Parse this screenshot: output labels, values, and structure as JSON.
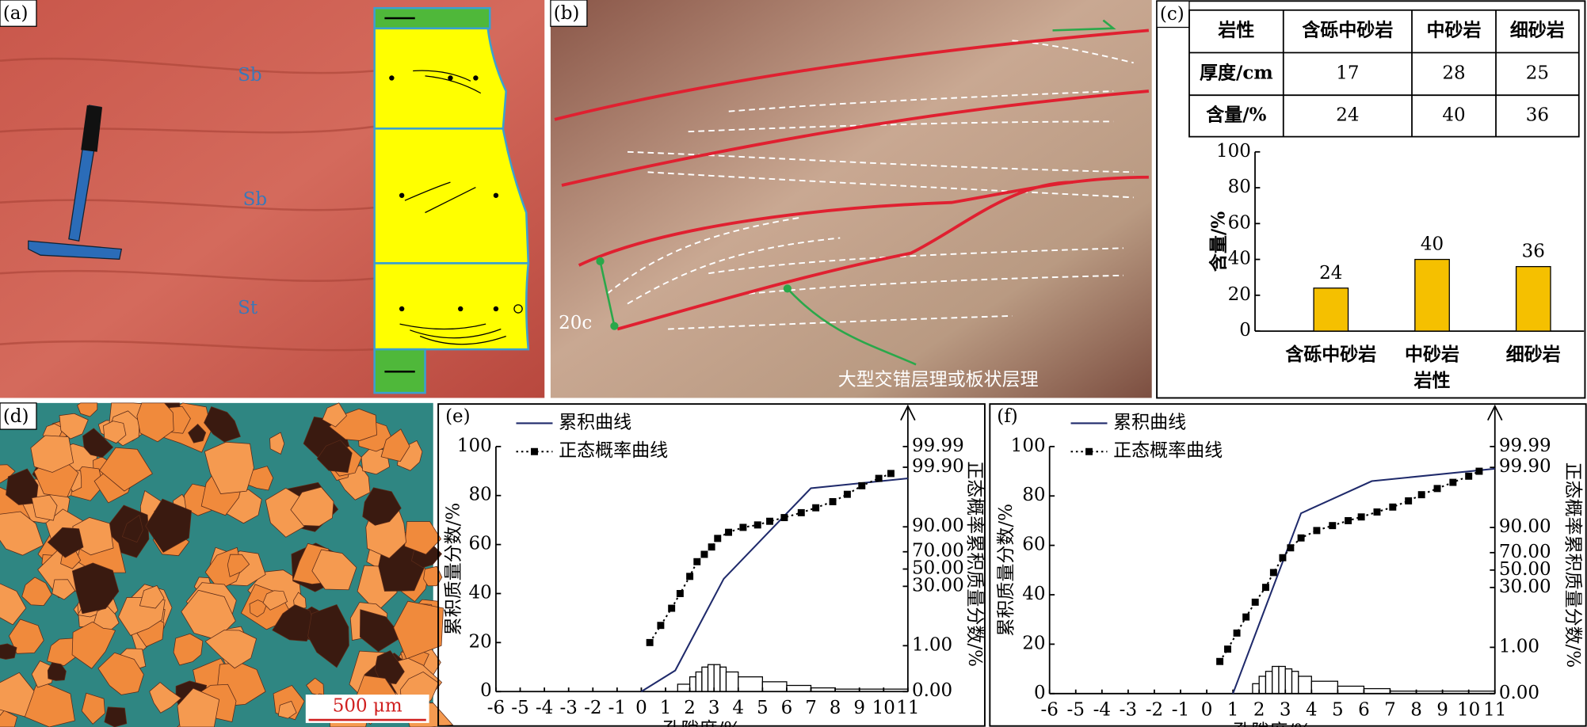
{
  "panels": {
    "a": {
      "label": "(a)",
      "facies": [
        "Sb",
        "Sb",
        "St"
      ]
    },
    "b": {
      "label": "(b)",
      "scale": "20c",
      "annotation": "大型交错层理或板状层理"
    },
    "c": {
      "label": "(c)"
    },
    "d": {
      "label": "(d)",
      "scale_bar": "500 μm"
    },
    "e": {
      "label": "(e)"
    },
    "f": {
      "label": "(f)"
    }
  },
  "table": {
    "header": [
      "岩性",
      "含砾中砂岩",
      "中砂岩",
      "细砂岩"
    ],
    "rows": [
      [
        "厚度/cm",
        17,
        28,
        25
      ],
      [
        "含量/%",
        24,
        40,
        36
      ]
    ]
  },
  "chart_data": [
    {
      "type": "bar",
      "ylabel": "含量/%",
      "xlabel": "岩性",
      "categories": [
        "含砾中砂岩",
        "中砂岩",
        "细砂岩"
      ],
      "values": [
        24,
        40,
        36
      ],
      "color": "#f5c000",
      "ylim": [
        0,
        100
      ],
      "yticks": [
        0,
        20,
        40,
        60,
        80,
        100
      ]
    },
    {
      "type": "line",
      "xlabel": "孔隙度/%",
      "ylabel": "累积质量分数/%",
      "y2label": "正态概率累积质量分数/%",
      "xlim": [
        -6,
        11
      ],
      "xticks": [
        -6,
        -5,
        -4,
        -3,
        -2,
        -1,
        0,
        1,
        2,
        3,
        4,
        5,
        6,
        7,
        8,
        9,
        10,
        11
      ],
      "ylim": [
        0,
        100
      ],
      "yticks": [
        0,
        20,
        40,
        60,
        80,
        100
      ],
      "y2scale": "probability",
      "y2lim": [
        0,
        99.99
      ],
      "y2ticks": [
        {
          "value": 0,
          "label": "0.00"
        },
        {
          "value": 1,
          "label": "1.00"
        },
        {
          "value": 30,
          "label": "30.00"
        },
        {
          "value": 50,
          "label": "50.00"
        },
        {
          "value": 70,
          "label": "70.00"
        },
        {
          "value": 90,
          "label": "90.00"
        },
        {
          "value": 99.9,
          "label": "99.90"
        },
        {
          "value": 99.99,
          "label": "99.99"
        }
      ],
      "series": [
        {
          "name": "累积曲线",
          "color": "#1f2a6b",
          "line_style": "solid",
          "x": [
            0,
            1.4,
            3.4,
            7.0,
            11
          ],
          "values": [
            0,
            8.6,
            46,
            83,
            87
          ]
        },
        {
          "name": "正态概率曲线",
          "color": "#000000",
          "line_style": "dotted",
          "marker": "square",
          "x": [
            0.35,
            0.8,
            1.25,
            1.6,
            2.0,
            2.3,
            2.6,
            2.9,
            3.15,
            3.6,
            4.2,
            4.8,
            5.3,
            5.9,
            6.6,
            7.2,
            7.9,
            8.5,
            9.1,
            9.8,
            10.3
          ],
          "values": [
            20,
            27,
            34,
            40,
            47,
            53,
            56,
            59,
            62.5,
            65,
            67,
            68,
            69.5,
            71,
            73,
            75,
            77.5,
            80.5,
            84,
            87,
            89
          ]
        }
      ],
      "histogram": {
        "bins": [
          1.5,
          2,
          2.25,
          2.5,
          2.75,
          3,
          3.25,
          3.5,
          4,
          5,
          6,
          7,
          8,
          9,
          10,
          11
        ],
        "counts": [
          3,
          6,
          8,
          10,
          11,
          11,
          10,
          8,
          6,
          4,
          2.5,
          1.5,
          1,
          1,
          1
        ]
      }
    },
    {
      "type": "line",
      "xlabel": "孔隙度/%",
      "ylabel": "累积质量分数/%",
      "y2label": "正态概率累积质量分数/%",
      "xlim": [
        -6,
        11
      ],
      "xticks": [
        -6,
        -5,
        -4,
        -3,
        -2,
        -1,
        0,
        1,
        2,
        3,
        4,
        5,
        6,
        7,
        8,
        9,
        10,
        11
      ],
      "ylim": [
        0,
        100
      ],
      "yticks": [
        0,
        20,
        40,
        60,
        80,
        100
      ],
      "y2scale": "probability",
      "y2lim": [
        0,
        99.99
      ],
      "y2ticks": [
        {
          "value": 0,
          "label": "0.00"
        },
        {
          "value": 1,
          "label": "1.00"
        },
        {
          "value": 30,
          "label": "30.00"
        },
        {
          "value": 50,
          "label": "50.00"
        },
        {
          "value": 70,
          "label": "70.00"
        },
        {
          "value": 90,
          "label": "90.00"
        },
        {
          "value": 99.9,
          "label": "99.90"
        },
        {
          "value": 99.99,
          "label": "99.99"
        }
      ],
      "series": [
        {
          "name": "累积曲线",
          "color": "#1f2a6b",
          "line_style": "solid",
          "x": [
            1.0,
            3.6,
            6.3,
            11
          ],
          "values": [
            0,
            73,
            86,
            91
          ]
        },
        {
          "name": "正态概率曲线",
          "color": "#000000",
          "line_style": "dotted",
          "marker": "square",
          "x": [
            0.5,
            0.8,
            1.15,
            1.5,
            1.85,
            2.25,
            2.55,
            2.9,
            3.2,
            3.6,
            4.2,
            4.8,
            5.4,
            5.9,
            6.5,
            7.1,
            7.7,
            8.2,
            8.8,
            9.4,
            10.0,
            10.4
          ],
          "values": [
            13,
            18,
            24.5,
            31,
            37,
            43,
            49,
            55,
            59,
            63,
            66,
            68,
            70,
            71.5,
            73.5,
            75.5,
            78,
            80.5,
            83,
            85.5,
            88,
            90
          ]
        }
      ],
      "histogram": {
        "bins": [
          1.75,
          2,
          2.25,
          2.5,
          2.75,
          3,
          3.25,
          3.5,
          4,
          5,
          6,
          7,
          8,
          9,
          10,
          11
        ],
        "counts": [
          4,
          7,
          9,
          11,
          11,
          10,
          9,
          7,
          5,
          3,
          2,
          1,
          1,
          1,
          1
        ]
      }
    }
  ]
}
